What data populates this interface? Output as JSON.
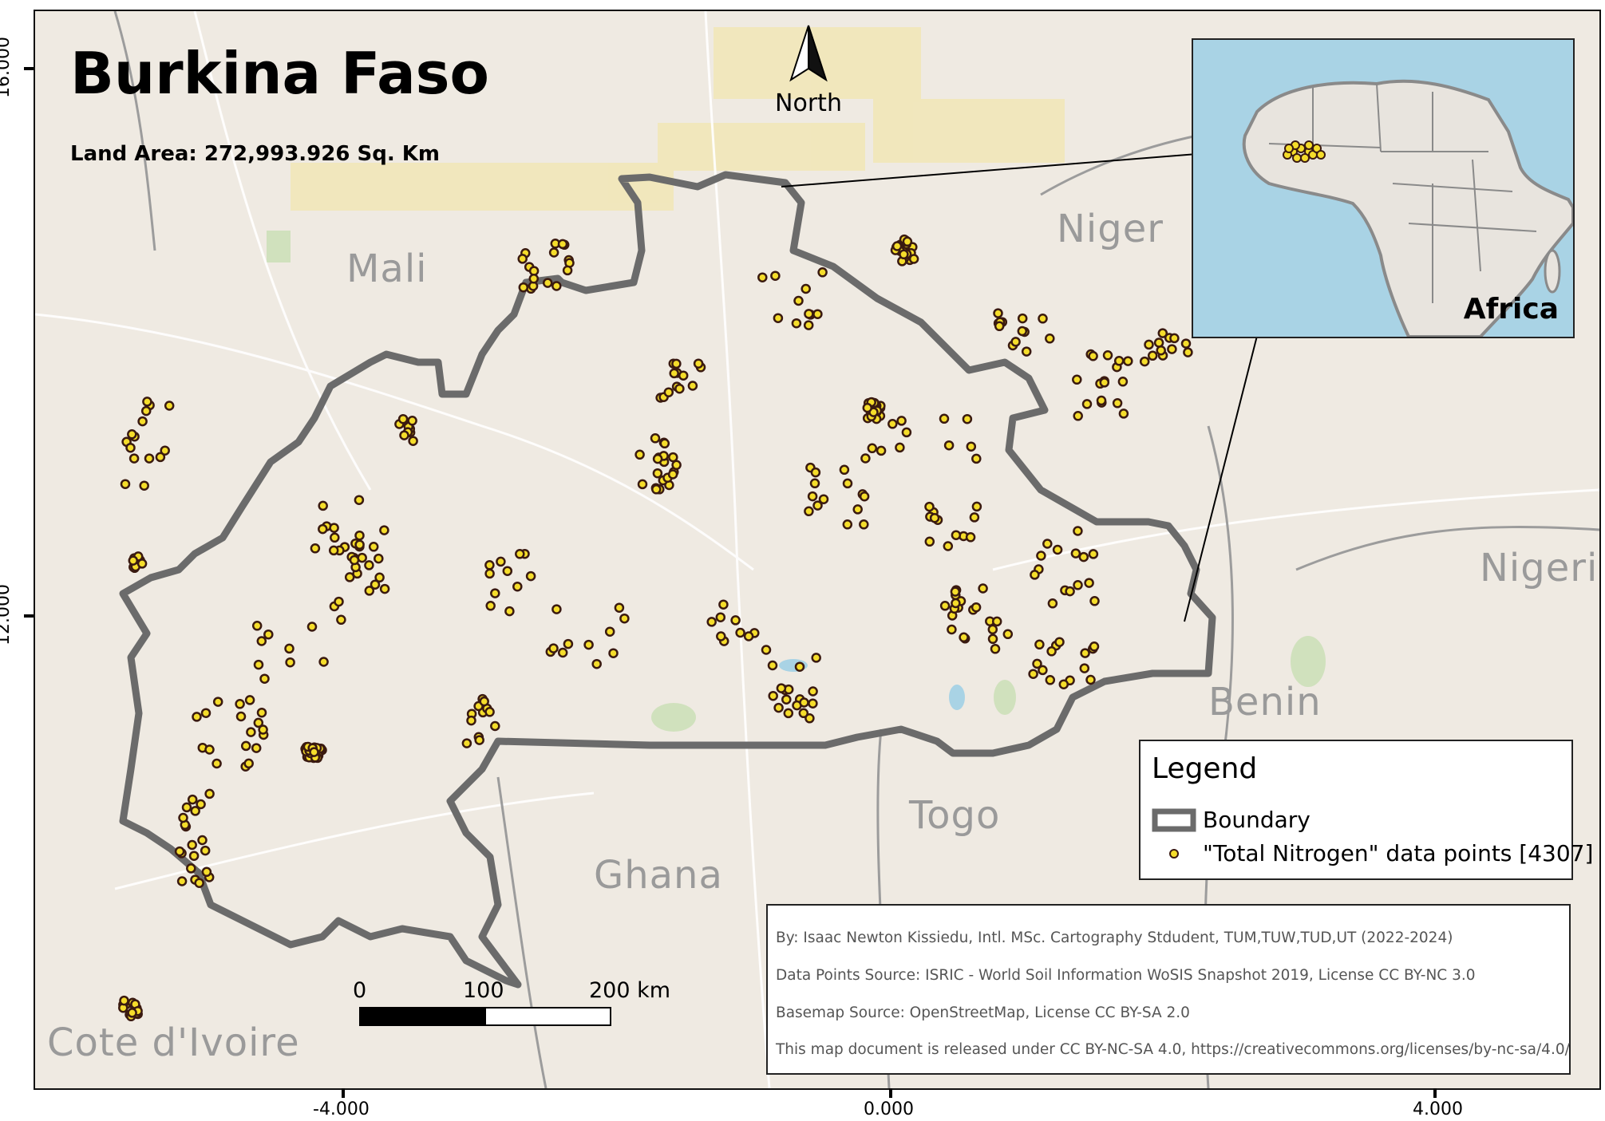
{
  "map": {
    "title": "Burkina Faso",
    "land_area": "Land Area: 272,993.926 Sq. Km",
    "north_label": "North",
    "country_labels": [
      {
        "name": "Mali"
      },
      {
        "name": "Niger"
      },
      {
        "name": "Nigeria"
      },
      {
        "name": "Benin"
      },
      {
        "name": "Togo"
      },
      {
        "name": "Ghana"
      },
      {
        "name": "Cote d'Ivoire"
      }
    ],
    "inset": {
      "label": "Africa"
    },
    "legend": {
      "title": "Legend",
      "items": [
        {
          "label": "Boundary",
          "color": "#6b6b6b"
        },
        {
          "label": "\"Total Nitrogen\" data points [4307]",
          "color": "#f5dd2b"
        }
      ]
    },
    "credits": [
      "By: Isaac Newton Kissiedu, Intl. MSc. Cartography Stdudent, TUM,TUW,TUD,UT (2022-2024)",
      "Data Points Source: ISRIC - World Soil Information WoSIS Snapshot 2019, License CC BY-NC 3.0",
      "Basemap Source: OpenStreetMap, License CC BY-SA 2.0",
      "This map document is released under CC BY-NC-SA 4.0, https://creativecommons.org/licenses/by-nc-sa/4.0/"
    ],
    "scale_bar": {
      "labels": [
        "0",
        "100",
        "200 km"
      ]
    },
    "x_ticks": [
      "-4.000",
      "0.000",
      "4.000"
    ],
    "y_ticks": [
      "16.000",
      "12.000"
    ],
    "colors": {
      "boundary": "#6b6b6b",
      "points": "#f5dd2b",
      "point_outline": "#3a1a10",
      "basemap": "#efeae2",
      "water": "#a9d3e5"
    },
    "icons": [
      "north-arrow-icon",
      "boundary-legend-icon",
      "data-point-legend-icon"
    ]
  }
}
